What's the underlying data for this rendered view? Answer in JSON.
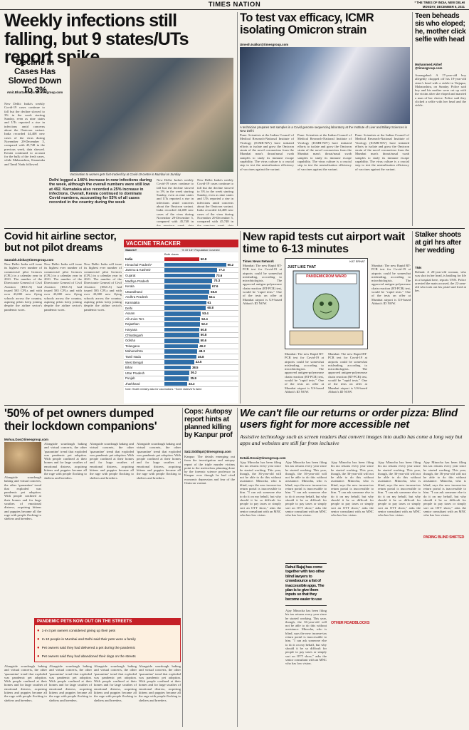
{
  "masthead": {
    "paper": "TIMES NATION",
    "edition": "* THE TIMES OF INDIA, NEW DELHI",
    "date": "MONDAY, DECEMBER 6, 2021"
  },
  "lead": {
    "headline": "Weekly infections still falling, but 9 states/UTs report spike",
    "subhead": "Decline In Cases Has Slowed Down To 3%",
    "byline": "Amit.Bhattacharya @timesgroup.com",
    "body": "New Delhi: India's weekly Covid-19 cases continue to fall but the decline slowed to 3% in the week starting Sunday, even as nine states and UTs reported a rise in infections amid concerns about the Omicron variant. India recorded 44,408 new cases of the virus during November 29-December 5, compared with 45,748 in the previous week, data showed. Kerala continued to account for the bulk of the fresh cases, while Maharashtra, Karnataka and Tamil Nadu followed.",
    "photo_caption": "Delhi logged a 146% increase in new infections during the week, although the overall numbers were still low at 492. Karnataka also recorded a 25% increase in infections. Overall, Kerala continued to dominate Covid numbers, accounting for 53% of all cases recorded in the country during the week",
    "photo_credit": "Vaccination to women gets fast-tracked by at Covid-19 centre in Mumbai on Sunday"
  },
  "omicron": {
    "headline": "To test vax efficacy, ICMR isolating Omicron strain",
    "byline": "Umesh.Isalkar@timesgroup.com",
    "body": "Pune: Scientists at the Indian Council of Medical Research-National Institute of Virology (ICMR-NIV) have initiated efforts to isolate and grow the Omicron strain of the novel coronavirus from the Mumbai man's throat/nasal swab samples to study its immune escape capability. The virus culture is a crucial step to test the neutralisation efficiency of vaccines against the variant.",
    "photo_caption": "A technician prepares test samples in a Covid genome sequencing laboratory at the Institute of Liver and Biliary Sciences in New Delhi"
  },
  "teen": {
    "headline": "Teen beheads sis who eloped; he, mother click selfie with head",
    "byline": "Mohammed.Akhef @timesgroup.com",
    "body": "Aurangabad: A 17-year-old boy allegedly chopped off his 19-year-old sister's head with a sickle in Vaijapur, Maharashtra, on Sunday. Police said boy and his mother were cut up with the victim after she eloped and married a man of her choice. Police said they clicked a selfie with her head and the sickle."
  },
  "covid_airline": {
    "headline": "Covid hit airline sector, but not pilot dreams",
    "byline": "Saurabh.Sinha@timesgroup.com",
    "body": "New Delhi: India will issue its highest ever number of commercial pilot licences (CPL) in a calendar year in 2021. The number of the Directorate General of Civil Aviation (DGCA) had issued 585 CPLs and with over 43,000 new flying schools across the country, aspiring pilots keep joining despite the airline sector's pandemic woes."
  },
  "vaccine": {
    "title": "VACCINE TRACKER",
    "legend_label": "% Of 18+ Population Covered",
    "col_state": "State/UT",
    "col_doses": "Both doses",
    "rows": [
      {
        "state": "India",
        "pct": 50.8
      },
      {
        "state": "Himachal Pradesh*",
        "pct": 90.2
      },
      {
        "state": "Jammu & Kashmir",
        "pct": 77.3
      },
      {
        "state": "Gujarat",
        "pct": 73.6
      },
      {
        "state": "Madhya Pradesh",
        "pct": 70.3
      },
      {
        "state": "Kerala",
        "pct": 67.6
      },
      {
        "state": "Uttarakhand",
        "pct": 65.8
      },
      {
        "state": "Andhra Pradesh",
        "pct": 63.1
      },
      {
        "state": "Karnataka",
        "pct": 61.0
      },
      {
        "state": "Delhi",
        "pct": 60.8
      },
      {
        "state": "Assam",
        "pct": 53.4
      },
      {
        "state": "All Union Terr.",
        "pct": 52.4
      },
      {
        "state": "Rajasthan",
        "pct": 52.2
      },
      {
        "state": "Haryana",
        "pct": 50.8
      },
      {
        "state": "Chhattisgarh",
        "pct": 50.8
      },
      {
        "state": "Odisha",
        "pct": 50.6
      },
      {
        "state": "Telangana",
        "pct": 49.2
      },
      {
        "state": "Maharashtra",
        "pct": 48.3
      },
      {
        "state": "Tamil Nadu",
        "pct": 46.8
      },
      {
        "state": "West Bengal",
        "pct": 43.5
      },
      {
        "state": "Bihar",
        "pct": 38.5
      },
      {
        "state": "Uttar Pradesh",
        "pct": 36.2
      },
      {
        "state": "Punjab",
        "pct": 35.9
      },
      {
        "state": "Jharkhand",
        "pct": 33.3
      }
    ],
    "note": "Note: Health ministry data for vaccinations. *Some states/UTs listed"
  },
  "rapid": {
    "headline": "New rapid tests cut airport wait time to 6-13 minutes",
    "byline": "Times News Network",
    "body": "Mumbai: The new Rapid RT-PCR test for Covid-19 at airports could be somewhat misleading, according to microbiologists. The approved antigen-polymerase chain reaction (RT-PCR) test, would be \"rapid tests.\" One of the tests on offer at Mumbai airport is US-based Abbott's ID NOW.",
    "box_title": "JUST LIKE THAT",
    "box_credit": "KAT ERNAT",
    "cartoon_label": "PANDEMICROM WARD"
  },
  "pet": {
    "headline": "'50% of pet owners dumped their lockdown companions'",
    "byline": "Mohua.Das@timesgroup.com",
    "body": "Alongside sourdough baking and virtual concerts, the other 'quarantine' trend that exploded was pandemic pet adoption. With people confined at their homes and for large swathes of emotional distress, acquiring kittens and puppies became all the rage with people flocking to shelters and breeders."
  },
  "pandemic_pets": {
    "title": "PANDEMIC PETS NOW OUT ON THE STREETS",
    "items": [
      "1-in-3 pet owners considered giving up their pets",
      "In 10 people in Mumbai and Delhi said their pets were a family",
      "Pet owners said they had delivered a pet during the pandemic",
      "Pet owners said they had abandoned their dogs on the streets"
    ]
  },
  "cops": {
    "headline": "Cops: Autopsy report hints at planned killing by Kanpur prof",
    "byline": "Saiz.Siddiqui@timesgroup.com",
    "body": "Kanpur: The details emerging out from the investigation and autopsy report of the triple murder victims point to the meticulous planning done by the forensic science professor in Kanpur ever though he had cited economic depression and fear of the Omicron variant."
  },
  "stalker": {
    "headline": "Stalker shoots at girl hrs after her wedding",
    "byline": "TNN",
    "body": "Rohtak: A 20-year-old woman, who was shot in her head, is battling for life in a hospital here, reports TNN. Police arrested the main accused, the 22-year-old who took out his pistol and fired at her."
  },
  "access": {
    "headline": "We can't file our returns or order pizza: Blind users fight for more accessible net",
    "deck": "Assistive technology such as screen readers that convert images into audio has come a long way but apps and websites are still far from inclusive",
    "byline": "Ketaki.Desai@timesgroup.com",
    "body": "Ajay Minocha has been filing his tax returns every year since he started working. This year, though, the 36-year-old will not be able to do this without assistance. Minocha, who is blind, says the new income-tax return portal is inaccessible to him. \"I can ask someone else to do it on my behalf, but why should it be so difficult for people to pay taxes or simply sort an OTT show,\" asks the senior consultant with an MNC who has low vision.",
    "pullquote": "Rahul Bajaj has come together with two other blind lawyers to crowdsource a list of inaccessible apps. The plan is to give them inputs so that they become easier to use",
    "other_heading": "OTHER ROADBLOCKS",
    "parting_heading": "PARING BLIND SHIFTED"
  }
}
